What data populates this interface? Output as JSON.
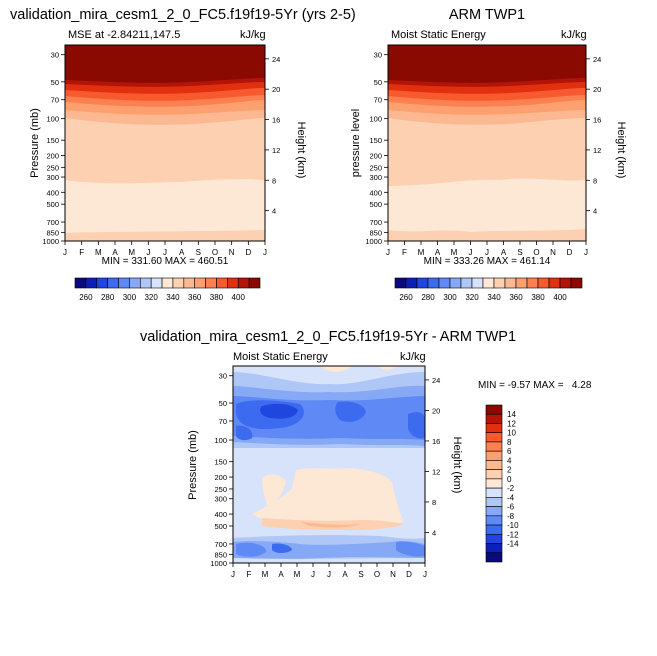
{
  "months": [
    "J",
    "F",
    "M",
    "A",
    "M",
    "J",
    "J",
    "A",
    "S",
    "O",
    "N",
    "D",
    "J"
  ],
  "pressure_ticks": [
    30,
    50,
    70,
    100,
    150,
    200,
    250,
    300,
    400,
    500,
    700,
    850,
    1000
  ],
  "height_ticks": [
    4,
    8,
    12,
    16,
    20,
    24
  ],
  "panels": [
    {
      "id": "model",
      "title": "validation_mira_cesm1_2_0_FC5.f19f19-5Yr (yrs 2-5)",
      "left_label": "MSE at -2.84211,147.5",
      "right_label": "kJ/kg",
      "ylabel": "Pressure (mb)",
      "y2label": "Height (km)",
      "minmax": "MIN = 331.60 MAX = 460.51"
    },
    {
      "id": "obs",
      "title": "ARM TWP1",
      "left_label": "Moist Static Energy",
      "right_label": "kJ/kg",
      "ylabel": "pressure level",
      "y2label": "Height (km)",
      "minmax": "MIN = 333.26 MAX = 461.14"
    },
    {
      "id": "diff",
      "title": "validation_mira_cesm1_2_0_FC5.f19f19-5Yr - ARM TWP1",
      "left_label": "Moist Static Energy",
      "right_label": "kJ/kg",
      "ylabel": "Pressure (mb)",
      "y2label": "Height (km)",
      "minmax": "MIN = -9.57 MAX =   4.28"
    }
  ],
  "colorbar_top": {
    "colors": [
      "#0a0a7a",
      "#0c20b8",
      "#1f47e0",
      "#3d6bf0",
      "#5f8af5",
      "#86a9f5",
      "#afc7f7",
      "#d6e3fa",
      "#fde7d5",
      "#fcd0b0",
      "#fcb890",
      "#fca070",
      "#fc8050",
      "#f85a30",
      "#e03010",
      "#b41405",
      "#8a0a02"
    ],
    "labels": [
      "260",
      "280",
      "300",
      "320",
      "340",
      "360",
      "380",
      "400"
    ]
  },
  "colorbar_diff": {
    "colors": [
      "#0a0a7a",
      "#0c20b8",
      "#1f47e0",
      "#3d6bf0",
      "#5f8af5",
      "#86a9f5",
      "#afc7f7",
      "#d6e3fa",
      "#fde7d5",
      "#fcd0b0",
      "#fcb890",
      "#fca070",
      "#fc8050",
      "#f85a30",
      "#e03010",
      "#b41405",
      "#8a0a02"
    ],
    "labels": [
      "14",
      "12",
      "10",
      "8",
      "6",
      "4",
      "2",
      "0",
      "-2",
      "-4",
      "-6",
      "-8",
      "-10",
      "-12",
      "-14"
    ]
  },
  "chart_data": [
    {
      "type": "heatmap",
      "title": "validation_mira_cesm1_2_0_FC5.f19f19-5Yr (yrs 2-5)",
      "xlabel": "",
      "ylabel": "Pressure (mb)",
      "y2label": "Height (km)",
      "x": [
        "J",
        "F",
        "M",
        "A",
        "M",
        "J",
        "J",
        "A",
        "S",
        "O",
        "N",
        "D",
        "J"
      ],
      "levels_hPa": [
        30,
        50,
        70,
        100,
        150,
        200,
        300,
        500,
        850,
        1000
      ],
      "values_approx_kJ_per_kg": [
        [
          460,
          460,
          460,
          460,
          460,
          460,
          460,
          460,
          460,
          460,
          460,
          460,
          460
        ],
        [
          395,
          395,
          392,
          390,
          392,
          395,
          398,
          398,
          396,
          392,
          390,
          392,
          395
        ],
        [
          372,
          372,
          370,
          368,
          368,
          370,
          372,
          372,
          370,
          368,
          368,
          370,
          372
        ],
        [
          352,
          352,
          350,
          350,
          348,
          348,
          350,
          350,
          350,
          348,
          348,
          350,
          352
        ],
        [
          345,
          345,
          345,
          345,
          345,
          345,
          345,
          345,
          345,
          345,
          345,
          345,
          345
        ],
        [
          343,
          343,
          343,
          343,
          343,
          343,
          343,
          343,
          343,
          343,
          343,
          343,
          343
        ],
        [
          340,
          341,
          341,
          340,
          340,
          340,
          341,
          341,
          341,
          340,
          340,
          341,
          341
        ],
        [
          334,
          334,
          334,
          334,
          334,
          334,
          334,
          334,
          334,
          334,
          334,
          334,
          334
        ],
        [
          333,
          333,
          333,
          333,
          333,
          333,
          333,
          333,
          333,
          333,
          333,
          333,
          333
        ],
        [
          342,
          342,
          342,
          342,
          342,
          342,
          342,
          342,
          342,
          342,
          342,
          342,
          342
        ]
      ],
      "min": 331.6,
      "max": 460.51
    },
    {
      "type": "heatmap",
      "title": "ARM TWP1",
      "ylabel": "pressure level",
      "y2label": "Height (km)",
      "x": [
        "J",
        "F",
        "M",
        "A",
        "M",
        "J",
        "J",
        "A",
        "S",
        "O",
        "N",
        "D",
        "J"
      ],
      "levels_hPa": [
        30,
        50,
        70,
        100,
        150,
        200,
        300,
        500,
        850,
        1000
      ],
      "values_approx_kJ_per_kg": [
        [
          461,
          461,
          461,
          461,
          461,
          461,
          461,
          461,
          461,
          461,
          461,
          461,
          461
        ],
        [
          395,
          395,
          392,
          390,
          392,
          395,
          398,
          398,
          396,
          392,
          390,
          392,
          395
        ],
        [
          372,
          372,
          370,
          368,
          368,
          370,
          372,
          372,
          370,
          368,
          368,
          370,
          372
        ],
        [
          352,
          352,
          350,
          350,
          348,
          348,
          350,
          350,
          350,
          348,
          348,
          350,
          352
        ],
        [
          345,
          345,
          345,
          345,
          345,
          345,
          345,
          345,
          345,
          345,
          345,
          345,
          345
        ],
        [
          343,
          343,
          343,
          343,
          343,
          343,
          343,
          343,
          343,
          343,
          343,
          343,
          343
        ],
        [
          340,
          341,
          341,
          340,
          340,
          340,
          341,
          341,
          341,
          340,
          340,
          341,
          341
        ],
        [
          334,
          334,
          334,
          334,
          334,
          334,
          334,
          334,
          334,
          334,
          334,
          334,
          334
        ],
        [
          335,
          335,
          335,
          335,
          335,
          335,
          335,
          335,
          335,
          335,
          335,
          335,
          335
        ],
        [
          342,
          342,
          342,
          342,
          342,
          342,
          342,
          342,
          342,
          342,
          342,
          342,
          342
        ]
      ],
      "min": 333.26,
      "max": 461.14
    },
    {
      "type": "heatmap",
      "title": "validation_mira_cesm1_2_0_FC5.f19f19-5Yr - ARM TWP1",
      "ylabel": "Pressure (mb)",
      "y2label": "Height (km)",
      "x": [
        "J",
        "F",
        "M",
        "A",
        "M",
        "J",
        "J",
        "A",
        "S",
        "O",
        "N",
        "D",
        "J"
      ],
      "levels_hPa": [
        30,
        50,
        70,
        100,
        150,
        200,
        300,
        500,
        700,
        850,
        1000
      ],
      "values_approx_kJ_per_kg": [
        [
          -1,
          -2,
          -3,
          -2,
          -1,
          0,
          1,
          2,
          0,
          1,
          0,
          -1,
          -1
        ],
        [
          -4,
          -5,
          -6,
          -5,
          -4,
          -3,
          -4,
          -5,
          -5,
          -3,
          -3,
          -5,
          -4
        ],
        [
          -6,
          -7,
          -8,
          -9,
          -7,
          -5,
          -6,
          -7,
          -8,
          -6,
          -6,
          -8,
          -6
        ],
        [
          -5,
          -6,
          -7,
          -7,
          -6,
          -5,
          -5,
          -6,
          -6,
          -5,
          -5,
          -7,
          -5
        ],
        [
          -1,
          -1,
          -1,
          -1,
          -1,
          -1,
          -1,
          -1,
          -1,
          -1,
          -1,
          -1,
          -1
        ],
        [
          -1,
          -1,
          1,
          1,
          -1,
          0,
          1,
          1,
          1,
          -1,
          -1,
          -1,
          -1
        ],
        [
          -1,
          -1,
          1,
          1,
          2,
          1,
          2,
          2,
          2,
          1,
          -1,
          -1,
          -1
        ],
        [
          1,
          1,
          2,
          3,
          3,
          4,
          3,
          4,
          4,
          3,
          1,
          1,
          1
        ],
        [
          -3,
          -4,
          -3,
          -2,
          -2,
          -2,
          -3,
          -3,
          -3,
          -2,
          -3,
          -3,
          -3
        ],
        [
          -5,
          -6,
          -6,
          -4,
          -4,
          -3,
          -4,
          -4,
          -4,
          -4,
          -5,
          -6,
          -5
        ],
        [
          -1,
          -1,
          -1,
          -1,
          -1,
          -1,
          -1,
          -1,
          -1,
          -1,
          -1,
          -1,
          -1
        ]
      ],
      "min": -9.57,
      "max": 4.28
    }
  ]
}
